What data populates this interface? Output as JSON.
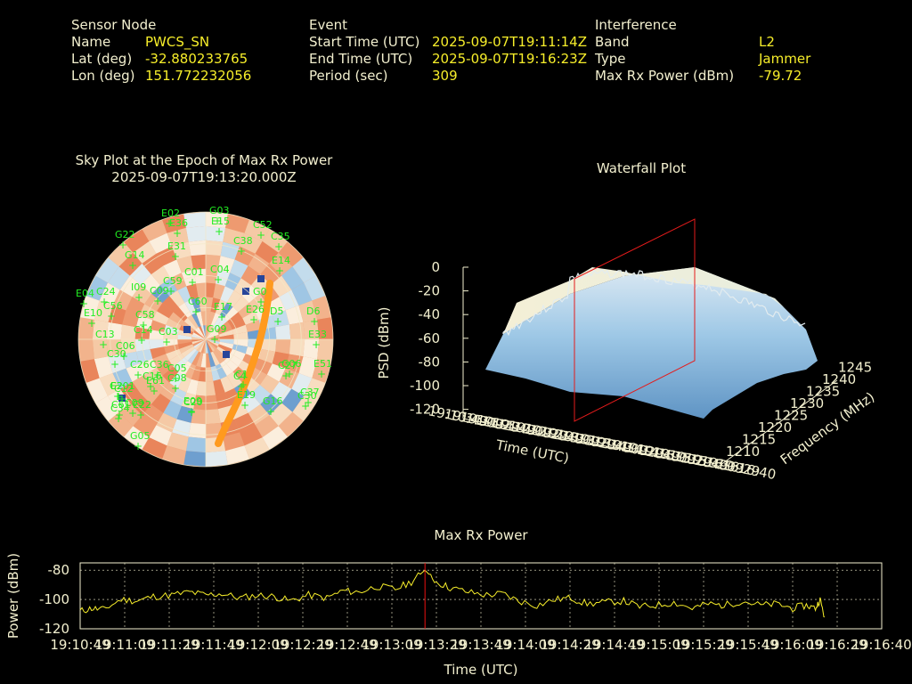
{
  "info": {
    "sensor": {
      "heading": "Sensor Node",
      "name_label": "Name",
      "name": "PWCS_SN",
      "lat_label": "Lat (deg)",
      "lat": "-32.880233765",
      "lon_label": "Lon (deg)",
      "lon": "151.772232056"
    },
    "event": {
      "heading": "Event",
      "start_label": "Start Time (UTC)",
      "start": "2025-09-07T19:11:14Z",
      "end_label": "End Time (UTC)",
      "end": "2025-09-07T19:16:23Z",
      "period_label": "Period (sec)",
      "period": "309"
    },
    "interference": {
      "heading": "Interference",
      "band_label": "Band",
      "band": "L2",
      "type_label": "Type",
      "type": "Jammer",
      "power_label": "Max Rx Power (dBm)",
      "power": "-79.72"
    }
  },
  "colors": {
    "label": "#f3f0cf",
    "value": "#f7ee2a",
    "sat": "#22ee22",
    "marker": "#ee1111",
    "trace": "#f7ee2a",
    "track": "#ff9a1e"
  },
  "chart_data": [
    {
      "type": "heatmap",
      "title": "Sky Plot at the Epoch of Max Rx Power",
      "subtitle": "2025-09-07T19:13:20.000Z",
      "satellites": [
        "E02",
        "G03",
        "C52",
        "E36",
        "E15",
        "G22",
        "C38",
        "C35",
        "E31",
        "G14",
        "E14",
        "C01",
        "C04",
        "C59",
        "E04",
        "I09",
        "C24",
        "C09",
        "C60",
        "E17",
        "G0",
        "E26",
        "C56",
        "E10",
        "D5",
        "D6",
        "C14",
        "C58",
        "C03",
        "E33",
        "G09",
        "C06",
        "C13",
        "C30",
        "C26",
        "C05",
        "C36",
        "G06",
        "C08",
        "E2",
        "C16",
        "C1",
        "C09",
        "C12",
        "C20",
        "C27",
        "E61",
        "C37",
        "E09",
        "C4",
        "E19",
        "C201",
        "G16",
        "C30",
        "E51",
        "C34",
        "G05",
        "C61",
        "E22"
      ]
    },
    {
      "type": "area",
      "title": "Waterfall Plot",
      "zlabel": "PSD (dBm)",
      "xlabel": "Time (UTC)",
      "ylabel": "Frequency (MHz)",
      "z_ticks": [
        "0",
        "-20",
        "-40",
        "-60",
        "-80",
        "-100",
        "-120"
      ],
      "freq_ticks": [
        "1210",
        "1215",
        "1220",
        "1225",
        "1230",
        "1235",
        "1240",
        "1245"
      ]
    },
    {
      "type": "line",
      "title": "Max Rx Power",
      "xlabel": "Time (UTC)",
      "ylabel": "Power (dBm)",
      "ylim": [
        -120,
        -75
      ],
      "y_ticks": [
        "-80",
        "-100",
        "-120"
      ],
      "x_ticks": [
        "19:10:49",
        "19:11:09",
        "19:11:29",
        "19:11:49",
        "19:12:09",
        "19:12:29",
        "19:12:49",
        "19:13:09",
        "19:13:29",
        "19:13:49",
        "19:14:09",
        "19:14:29",
        "19:14:49",
        "19:15:09",
        "19:15:29",
        "19:15:49",
        "19:16:09",
        "19:16:29",
        "19:16:40"
      ],
      "xlim_sec": [
        0,
        351
      ],
      "marker_sec": 151,
      "series": [
        {
          "x": [
            0,
            5,
            10,
            18,
            25,
            32,
            40,
            48,
            55,
            62,
            70,
            78,
            85,
            92,
            100,
            108,
            115,
            122,
            130,
            138,
            145,
            151,
            156,
            162,
            170,
            178,
            185,
            192,
            200,
            208,
            215,
            222,
            230,
            238,
            245,
            252,
            260,
            268,
            275,
            282,
            290,
            298,
            305,
            312,
            318,
            322,
            324,
            326
          ],
          "values": [
            -108,
            -106,
            -107,
            -100,
            -101,
            -98,
            -97,
            -95,
            -97,
            -96,
            -99,
            -97,
            -98,
            -101,
            -97,
            -99,
            -94,
            -95,
            -91,
            -93,
            -88,
            -80,
            -88,
            -92,
            -95,
            -97,
            -96,
            -101,
            -104,
            -100,
            -99,
            -103,
            -102,
            -101,
            -105,
            -104,
            -102,
            -106,
            -103,
            -104,
            -101,
            -104,
            -103,
            -106,
            -104,
            -106,
            -100,
            -112
          ]
        }
      ]
    }
  ]
}
